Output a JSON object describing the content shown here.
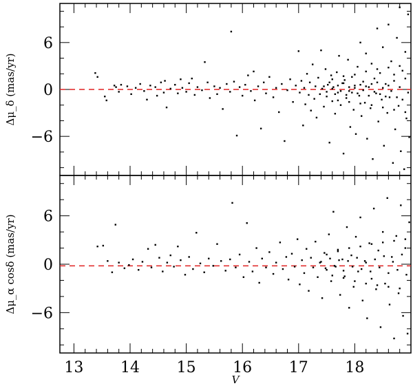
{
  "chart_data": [
    {
      "type": "scatter",
      "panel": "top",
      "xlabel": "",
      "ylabel": "Δμ_δ (mas/yr)",
      "xlim": [
        12.75,
        19.0
      ],
      "ylim": [
        -11,
        11
      ],
      "ytick_values": [
        -6,
        0,
        6
      ],
      "ytick_labels": [
        "−6",
        "0",
        "6"
      ],
      "reference_line": {
        "y": 0,
        "color": "#e02020",
        "style": "dashed"
      },
      "points": [
        [
          13.38,
          2.1
        ],
        [
          13.42,
          1.6
        ],
        [
          13.55,
          -0.9
        ],
        [
          13.58,
          -1.4
        ],
        [
          13.72,
          0.5
        ],
        [
          13.75,
          0.3
        ],
        [
          13.8,
          -0.3
        ],
        [
          13.84,
          0.6
        ],
        [
          13.95,
          0.4
        ],
        [
          14.02,
          -0.6
        ],
        [
          14.1,
          0.2
        ],
        [
          14.18,
          0.7
        ],
        [
          14.25,
          -0.2
        ],
        [
          14.3,
          -1.3
        ],
        [
          14.36,
          0.5
        ],
        [
          14.45,
          0.3
        ],
        [
          14.48,
          -0.8
        ],
        [
          14.55,
          0.9
        ],
        [
          14.6,
          -0.4
        ],
        [
          14.62,
          1.1
        ],
        [
          14.65,
          -2.3
        ],
        [
          14.72,
          0.1
        ],
        [
          14.8,
          0.6
        ],
        [
          14.85,
          -0.5
        ],
        [
          14.9,
          1.3
        ],
        [
          14.93,
          0.2
        ],
        [
          15.0,
          -0.3
        ],
        [
          15.05,
          0.8
        ],
        [
          15.1,
          1.4
        ],
        [
          15.15,
          -0.7
        ],
        [
          15.2,
          0.3
        ],
        [
          15.28,
          -0.1
        ],
        [
          15.33,
          3.5
        ],
        [
          15.38,
          0.9
        ],
        [
          15.42,
          -1.1
        ],
        [
          15.5,
          0.4
        ],
        [
          15.55,
          -0.6
        ],
        [
          15.6,
          0.2
        ],
        [
          15.65,
          -2.5
        ],
        [
          15.72,
          0.7
        ],
        [
          15.78,
          -0.3
        ],
        [
          15.8,
          7.4
        ],
        [
          15.85,
          1.0
        ],
        [
          15.9,
          -5.9
        ],
        [
          15.95,
          0.3
        ],
        [
          16.0,
          -0.8
        ],
        [
          16.05,
          0.6
        ],
        [
          16.1,
          1.8
        ],
        [
          16.15,
          -0.2
        ],
        [
          16.2,
          2.3
        ],
        [
          16.22,
          -1.4
        ],
        [
          16.28,
          0.4
        ],
        [
          16.33,
          -5.0
        ],
        [
          16.38,
          0.9
        ],
        [
          16.42,
          -0.5
        ],
        [
          16.48,
          1.6
        ],
        [
          16.55,
          -1.0
        ],
        [
          16.6,
          0.2
        ],
        [
          16.65,
          -2.9
        ],
        [
          16.7,
          0.7
        ],
        [
          16.75,
          -6.6
        ],
        [
          16.8,
          -0.1
        ],
        [
          16.85,
          1.3
        ],
        [
          16.9,
          -1.6
        ],
        [
          16.95,
          0.5
        ],
        [
          17.0,
          4.9
        ],
        [
          17.02,
          -0.4
        ],
        [
          17.05,
          1.1
        ],
        [
          17.08,
          -4.6
        ],
        [
          17.1,
          0.2
        ],
        [
          17.12,
          -1.9
        ],
        [
          17.15,
          2.0
        ],
        [
          17.18,
          -0.7
        ],
        [
          17.2,
          0.9
        ],
        [
          17.22,
          -2.7
        ],
        [
          17.25,
          3.2
        ],
        [
          17.28,
          -1.2
        ],
        [
          17.3,
          0.4
        ],
        [
          17.32,
          -3.6
        ],
        [
          17.35,
          1.5
        ],
        [
          17.38,
          -0.6
        ],
        [
          17.4,
          5.0
        ],
        [
          17.42,
          0.1
        ],
        [
          17.45,
          -2.2
        ],
        [
          17.48,
          2.6
        ],
        [
          17.5,
          -0.9
        ],
        [
          17.52,
          0.6
        ],
        [
          17.55,
          -6.8
        ],
        [
          17.58,
          1.8
        ],
        [
          17.6,
          -1.5
        ],
        [
          17.62,
          0.3
        ],
        [
          17.65,
          -3.1
        ],
        [
          17.68,
          2.2
        ],
        [
          17.7,
          -0.4
        ],
        [
          17.72,
          4.3
        ],
        [
          17.75,
          -2.0
        ],
        [
          17.78,
          0.8
        ],
        [
          17.8,
          -8.2
        ],
        [
          17.82,
          1.2
        ],
        [
          17.85,
          -1.1
        ],
        [
          17.88,
          3.8
        ],
        [
          17.9,
          -0.2
        ],
        [
          17.92,
          -4.8
        ],
        [
          17.95,
          1.6
        ],
        [
          17.98,
          -2.6
        ],
        [
          18.0,
          0.5
        ],
        [
          18.02,
          -5.7
        ],
        [
          18.05,
          2.9
        ],
        [
          18.08,
          -0.8
        ],
        [
          18.1,
          6.0
        ],
        [
          18.12,
          -3.4
        ],
        [
          18.15,
          1.0
        ],
        [
          18.18,
          -1.7
        ],
        [
          18.2,
          4.6
        ],
        [
          18.22,
          -6.3
        ],
        [
          18.25,
          0.3
        ],
        [
          18.28,
          -2.4
        ],
        [
          18.3,
          3.3
        ],
        [
          18.32,
          -8.9
        ],
        [
          18.35,
          1.4
        ],
        [
          18.38,
          -0.5
        ],
        [
          18.4,
          7.8
        ],
        [
          18.42,
          -4.1
        ],
        [
          18.45,
          2.1
        ],
        [
          18.48,
          -1.3
        ],
        [
          18.5,
          5.4
        ],
        [
          18.52,
          -7.2
        ],
        [
          18.55,
          0.7
        ],
        [
          18.58,
          -3.0
        ],
        [
          18.6,
          8.3
        ],
        [
          18.62,
          -1.0
        ],
        [
          18.65,
          3.6
        ],
        [
          18.68,
          -9.4
        ],
        [
          18.7,
          1.9
        ],
        [
          18.72,
          -5.1
        ],
        [
          18.75,
          6.6
        ],
        [
          18.78,
          -2.1
        ],
        [
          18.8,
          10.5
        ],
        [
          18.82,
          -7.9
        ],
        [
          18.85,
          2.4
        ],
        [
          18.88,
          -10.2
        ],
        [
          18.9,
          4.8
        ],
        [
          18.92,
          -3.7
        ],
        [
          18.95,
          9.6
        ],
        [
          18.97,
          -6.1
        ],
        [
          17.45,
          0.4
        ],
        [
          17.5,
          -0.3
        ],
        [
          17.55,
          0.9
        ],
        [
          17.6,
          0.1
        ],
        [
          17.65,
          -0.6
        ],
        [
          17.7,
          0.5
        ],
        [
          17.75,
          -0.2
        ],
        [
          17.8,
          0.8
        ],
        [
          17.85,
          -0.7
        ],
        [
          17.9,
          0.3
        ],
        [
          17.95,
          -0.4
        ],
        [
          18.0,
          0.2
        ],
        [
          18.05,
          -0.5
        ],
        [
          18.1,
          0.6
        ],
        [
          18.15,
          -0.1
        ],
        [
          18.2,
          0.4
        ],
        [
          18.25,
          -0.8
        ],
        [
          18.3,
          0.7
        ],
        [
          18.35,
          -0.3
        ],
        [
          18.4,
          0.9
        ],
        [
          18.45,
          -0.6
        ],
        [
          18.5,
          0.2
        ],
        [
          18.55,
          -0.9
        ],
        [
          18.6,
          0.5
        ],
        [
          18.65,
          -0.2
        ],
        [
          18.7,
          1.1
        ],
        [
          18.75,
          -1.0
        ],
        [
          18.8,
          0.3
        ],
        [
          18.85,
          -1.3
        ],
        [
          18.9,
          1.4
        ],
        [
          18.95,
          -0.4
        ],
        [
          17.6,
          1.3
        ],
        [
          17.7,
          -1.4
        ],
        [
          17.8,
          1.7
        ],
        [
          17.9,
          -1.6
        ],
        [
          18.0,
          1.9
        ],
        [
          18.1,
          -1.8
        ],
        [
          18.2,
          2.3
        ],
        [
          18.3,
          -2.0
        ],
        [
          18.4,
          2.6
        ],
        [
          18.5,
          -2.3
        ],
        [
          18.6,
          2.8
        ],
        [
          18.7,
          -2.6
        ],
        [
          18.8,
          3.0
        ],
        [
          18.9,
          -2.9
        ]
      ]
    },
    {
      "type": "scatter",
      "panel": "bottom",
      "xlabel": "V",
      "ylabel": "Δμ_α cosδ (mas/yr)",
      "xlim": [
        12.75,
        19.0
      ],
      "ylim": [
        -11,
        11
      ],
      "xtick_values": [
        13,
        14,
        15,
        16,
        17,
        18
      ],
      "xtick_labels": [
        "13",
        "14",
        "15",
        "16",
        "17",
        "18"
      ],
      "ytick_values": [
        -6,
        0,
        6
      ],
      "ytick_labels": [
        "−6",
        "0",
        "6"
      ],
      "reference_line": {
        "y": -0.2,
        "color": "#e02020",
        "style": "dashed"
      },
      "points": [
        [
          13.42,
          2.2
        ],
        [
          13.52,
          2.3
        ],
        [
          13.6,
          0.4
        ],
        [
          13.68,
          -1.0
        ],
        [
          13.74,
          4.9
        ],
        [
          13.8,
          0.2
        ],
        [
          13.9,
          -0.5
        ],
        [
          13.98,
          -0.1
        ],
        [
          14.05,
          0.6
        ],
        [
          14.15,
          -0.7
        ],
        [
          14.22,
          0.3
        ],
        [
          14.32,
          1.9
        ],
        [
          14.38,
          -0.4
        ],
        [
          14.45,
          2.4
        ],
        [
          14.52,
          0.8
        ],
        [
          14.58,
          -0.9
        ],
        [
          14.66,
          0.2
        ],
        [
          14.72,
          1.1
        ],
        [
          14.78,
          -0.3
        ],
        [
          14.85,
          2.2
        ],
        [
          14.9,
          0.5
        ],
        [
          14.98,
          -1.3
        ],
        [
          15.05,
          0.9
        ],
        [
          15.12,
          -0.6
        ],
        [
          15.18,
          3.9
        ],
        [
          15.25,
          0.1
        ],
        [
          15.32,
          -1.0
        ],
        [
          15.4,
          0.7
        ],
        [
          15.48,
          -0.2
        ],
        [
          15.55,
          2.5
        ],
        [
          15.62,
          0.4
        ],
        [
          15.7,
          -0.8
        ],
        [
          15.78,
          0.6
        ],
        [
          15.82,
          7.6
        ],
        [
          15.88,
          -0.4
        ],
        [
          15.95,
          1.2
        ],
        [
          16.02,
          -1.6
        ],
        [
          16.08,
          5.1
        ],
        [
          16.12,
          0.3
        ],
        [
          16.18,
          -0.9
        ],
        [
          16.25,
          2.0
        ],
        [
          16.3,
          -2.3
        ],
        [
          16.35,
          0.7
        ],
        [
          16.42,
          -0.4
        ],
        [
          16.48,
          1.5
        ],
        [
          16.55,
          -1.2
        ],
        [
          16.6,
          0.2
        ],
        [
          16.67,
          2.7
        ],
        [
          16.72,
          -0.6
        ],
        [
          16.78,
          0.9
        ],
        [
          16.82,
          -1.9
        ],
        [
          16.88,
          1.3
        ],
        [
          16.93,
          -0.3
        ],
        [
          16.98,
          3.1
        ],
        [
          17.02,
          -2.5
        ],
        [
          17.06,
          0.5
        ],
        [
          17.1,
          -1.1
        ],
        [
          17.14,
          1.9
        ],
        [
          17.18,
          -3.3
        ],
        [
          17.22,
          0.8
        ],
        [
          17.26,
          -0.4
        ],
        [
          17.3,
          2.8
        ],
        [
          17.34,
          -1.6
        ],
        [
          17.38,
          0.2
        ],
        [
          17.42,
          -4.2
        ],
        [
          17.46,
          1.4
        ],
        [
          17.5,
          -0.7
        ],
        [
          17.54,
          3.7
        ],
        [
          17.58,
          -2.1
        ],
        [
          17.62,
          6.5
        ],
        [
          17.66,
          -0.3
        ],
        [
          17.7,
          1.8
        ],
        [
          17.74,
          -3.8
        ],
        [
          17.78,
          0.6
        ],
        [
          17.82,
          -1.5
        ],
        [
          17.86,
          4.6
        ],
        [
          17.9,
          -5.4
        ],
        [
          17.94,
          1.1
        ],
        [
          17.98,
          -2.8
        ],
        [
          18.02,
          3.4
        ],
        [
          18.06,
          -0.9
        ],
        [
          18.1,
          5.8
        ],
        [
          18.14,
          -4.5
        ],
        [
          18.18,
          0.4
        ],
        [
          18.22,
          -6.7
        ],
        [
          18.26,
          2.6
        ],
        [
          18.3,
          -1.8
        ],
        [
          18.34,
          6.9
        ],
        [
          18.38,
          -3.1
        ],
        [
          18.42,
          1.7
        ],
        [
          18.46,
          -7.8
        ],
        [
          18.5,
          4.0
        ],
        [
          18.54,
          -2.4
        ],
        [
          18.58,
          8.2
        ],
        [
          18.62,
          -5.0
        ],
        [
          18.66,
          0.9
        ],
        [
          18.7,
          -9.2
        ],
        [
          18.74,
          3.5
        ],
        [
          18.78,
          -3.6
        ],
        [
          18.82,
          7.3
        ],
        [
          18.86,
          -6.4
        ],
        [
          18.9,
          2.0
        ],
        [
          18.94,
          -8.6
        ],
        [
          18.97,
          5.2
        ],
        [
          17.4,
          0.3
        ],
        [
          17.48,
          -0.5
        ],
        [
          17.56,
          0.7
        ],
        [
          17.64,
          -0.2
        ],
        [
          17.72,
          0.5
        ],
        [
          17.8,
          -0.8
        ],
        [
          17.88,
          0.4
        ],
        [
          17.96,
          -0.3
        ],
        [
          18.04,
          0.8
        ],
        [
          18.12,
          -0.6
        ],
        [
          18.2,
          0.2
        ],
        [
          18.28,
          -0.9
        ],
        [
          18.36,
          0.6
        ],
        [
          18.44,
          -0.4
        ],
        [
          18.52,
          1.0
        ],
        [
          18.6,
          -1.1
        ],
        [
          18.68,
          0.3
        ],
        [
          18.76,
          -0.7
        ],
        [
          18.84,
          1.2
        ],
        [
          18.92,
          -1.3
        ],
        [
          17.5,
          1.2
        ],
        [
          17.6,
          -1.4
        ],
        [
          17.7,
          1.6
        ],
        [
          17.8,
          -1.7
        ],
        [
          17.9,
          2.0
        ],
        [
          18.0,
          -2.1
        ],
        [
          18.1,
          2.2
        ],
        [
          18.2,
          -2.4
        ],
        [
          18.3,
          2.5
        ],
        [
          18.4,
          -2.6
        ],
        [
          18.5,
          2.7
        ],
        [
          18.6,
          -2.8
        ],
        [
          18.7,
          2.9
        ],
        [
          18.8,
          -3.0
        ],
        [
          18.9,
          3.1
        ]
      ]
    }
  ],
  "colors": {
    "points": "#000000",
    "reference_line": "#e02020",
    "axes": "#000000"
  }
}
